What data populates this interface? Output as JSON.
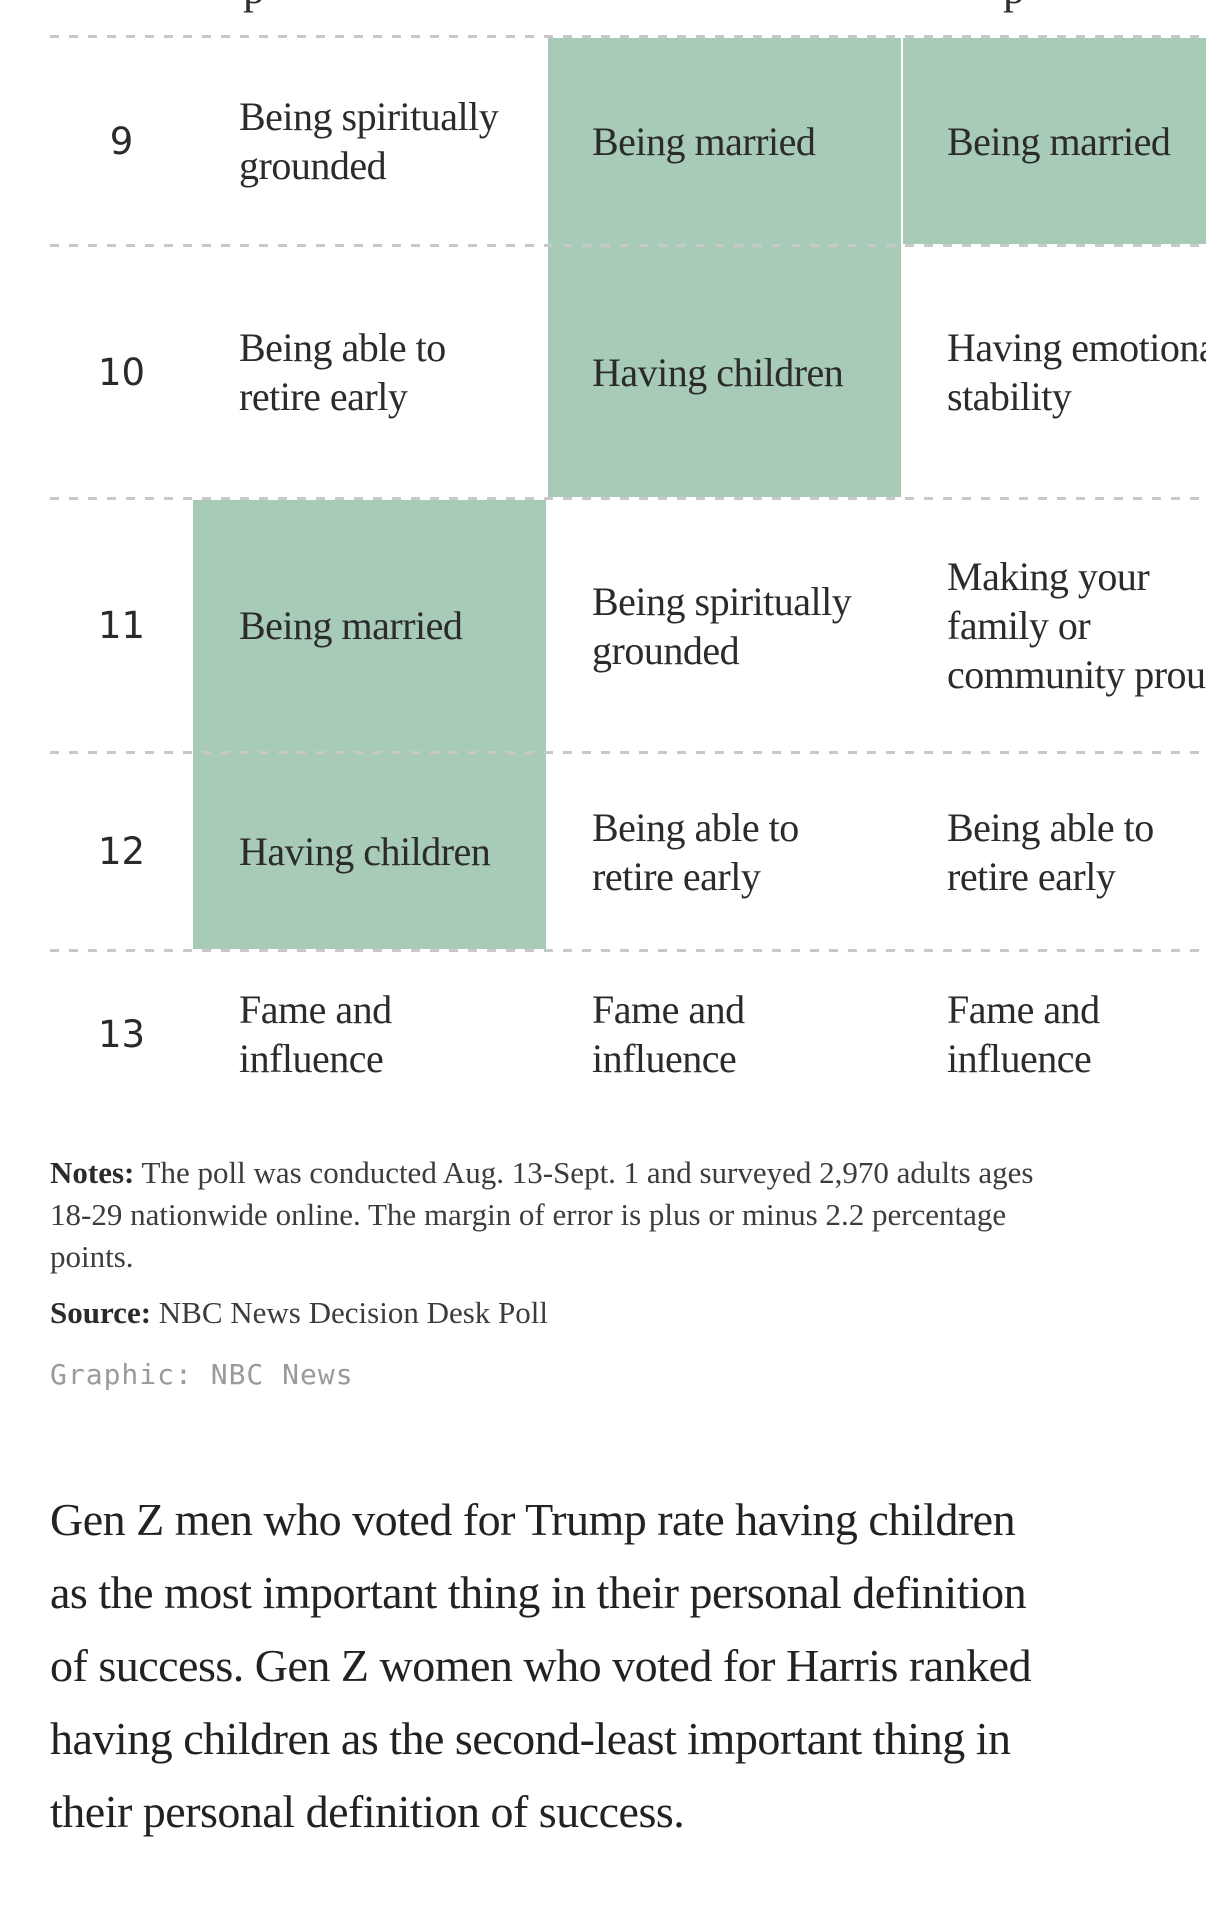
{
  "chart_data": {
    "type": "table",
    "title": "",
    "highlight_color": "#a8cbb8",
    "rank_column_values": [
      9,
      10,
      11,
      12,
      13
    ],
    "rows": [
      {
        "rank": "9",
        "cells": [
          "Being spiritually grounded",
          "Being married",
          "Being married"
        ],
        "highlighted": [
          false,
          true,
          true
        ]
      },
      {
        "rank": "10",
        "cells": [
          "Being able to retire early",
          "Having children",
          "Having emotional stability"
        ],
        "highlighted": [
          false,
          true,
          false
        ]
      },
      {
        "rank": "11",
        "cells": [
          "Being married",
          "Being spiritually grounded",
          "Making your family or community proud"
        ],
        "highlighted": [
          true,
          false,
          false
        ]
      },
      {
        "rank": "12",
        "cells": [
          "Having children",
          "Being able to retire early",
          "Being able to retire early"
        ],
        "highlighted": [
          true,
          false,
          false
        ]
      },
      {
        "rank": "13",
        "cells": [
          "Fame and influence",
          "Fame and influence",
          "Fame and influence"
        ],
        "highlighted": [
          false,
          false,
          false
        ]
      }
    ],
    "layout_hints": {
      "separators": "dashed horizontal lines between ranked rows",
      "third_column_clipped_at_right_edge": true,
      "row_above_rank_9_clipped_at_top": true
    }
  },
  "clipped_fragments": {
    "left_glyph": "p",
    "right_glyph": "p"
  },
  "notes": {
    "label": "Notes:",
    "text": " The poll was conducted Aug. 13-Sept. 1 and surveyed 2,970 adults ages 18-29 nationwide online. The margin of error is plus or minus 2.2 percentage points."
  },
  "source": {
    "label": "Source:",
    "text": " NBC News Decision Desk Poll"
  },
  "credit": "Graphic: NBC News",
  "caption": "Gen Z men who voted for Trump rate having children as the most important thing in their personal definition of success. Gen Z women who voted for Harris ranked having children as the second-least important thing in their personal definition of success."
}
